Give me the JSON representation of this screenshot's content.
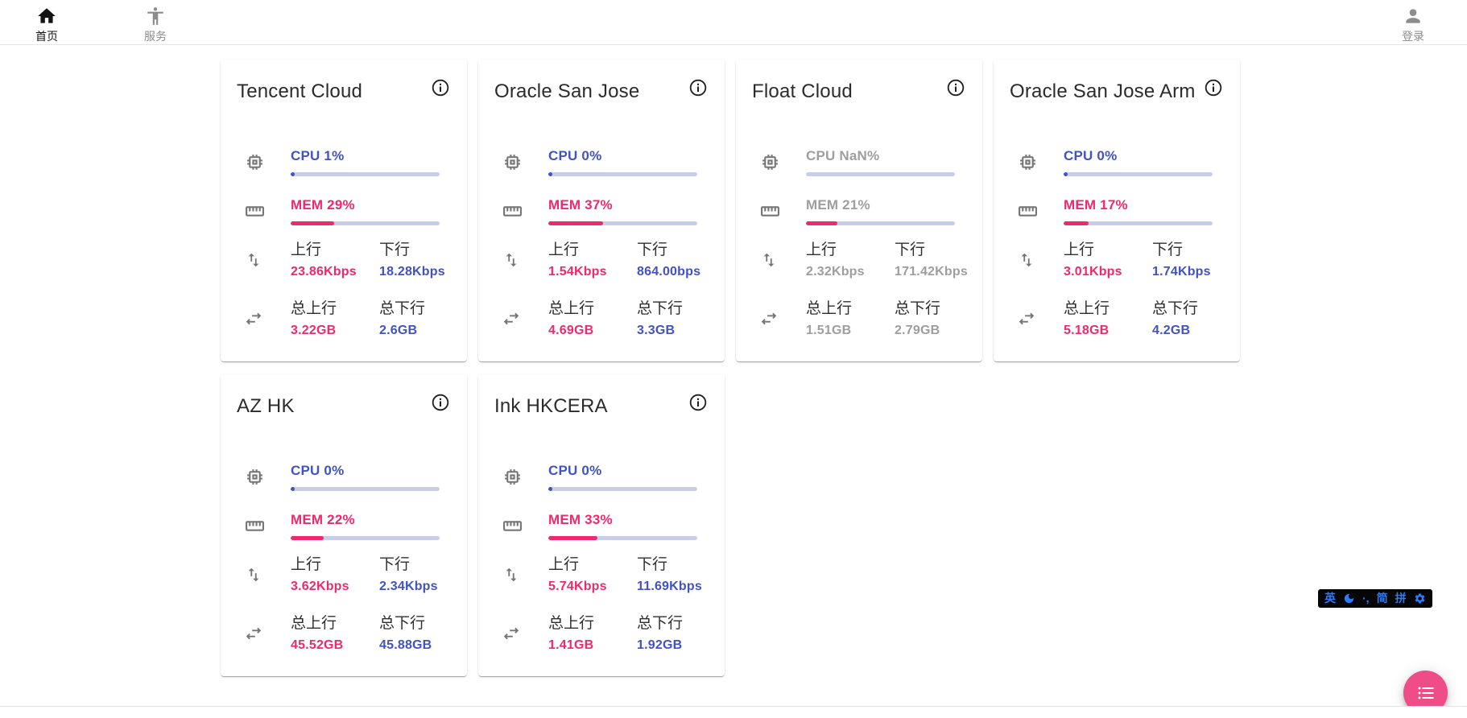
{
  "nav": {
    "home": {
      "label": "首页"
    },
    "service": {
      "label": "服务"
    },
    "login": {
      "label": "登录"
    }
  },
  "labels": {
    "upload": "上行",
    "download": "下行",
    "total_upload": "总上行",
    "total_download": "总下行"
  },
  "servers": [
    {
      "name": "Tencent Cloud",
      "cpu_label": "CPU 1%",
      "cpu_pct": 1,
      "mem_label": "MEM 29%",
      "mem_pct": 29,
      "upload": "23.86Kbps",
      "download": "18.28Kbps",
      "total_upload": "3.22GB",
      "total_download": "2.6GB",
      "offline": false
    },
    {
      "name": "Oracle San Jose",
      "cpu_label": "CPU 0%",
      "cpu_pct": 0,
      "mem_label": "MEM 37%",
      "mem_pct": 37,
      "upload": "1.54Kbps",
      "download": "864.00bps",
      "total_upload": "4.69GB",
      "total_download": "3.3GB",
      "offline": false
    },
    {
      "name": "Float Cloud",
      "cpu_label": "CPU NaN%",
      "cpu_pct": null,
      "mem_label": "MEM 21%",
      "mem_pct": 21,
      "upload": "2.32Kbps",
      "download": "171.42Kbps",
      "total_upload": "1.51GB",
      "total_download": "2.79GB",
      "offline": true
    },
    {
      "name": "Oracle San Jose Arm",
      "cpu_label": "CPU 0%",
      "cpu_pct": 0,
      "mem_label": "MEM 17%",
      "mem_pct": 17,
      "upload": "3.01Kbps",
      "download": "1.74Kbps",
      "total_upload": "5.18GB",
      "total_download": "4.2GB",
      "offline": false
    },
    {
      "name": "AZ HK",
      "cpu_label": "CPU 0%",
      "cpu_pct": 0,
      "mem_label": "MEM 22%",
      "mem_pct": 22,
      "upload": "3.62Kbps",
      "download": "2.34Kbps",
      "total_upload": "45.52GB",
      "total_download": "45.88GB",
      "offline": false
    },
    {
      "name": "Ink HKCERA",
      "cpu_label": "CPU 0%",
      "cpu_pct": 0,
      "mem_label": "MEM 33%",
      "mem_pct": 33,
      "upload": "5.74Kbps",
      "download": "11.69Kbps",
      "total_upload": "1.41GB",
      "total_download": "1.92GB",
      "offline": false
    }
  ],
  "ime_bar": {
    "items": [
      {
        "type": "text",
        "label": "英",
        "name": "ime-english-mode"
      },
      {
        "type": "icon",
        "name": "moon-icon"
      },
      {
        "type": "text",
        "label": "·,",
        "name": "ime-punctuation-mode"
      },
      {
        "type": "text",
        "label": "简",
        "name": "ime-simplified-mode"
      },
      {
        "type": "text",
        "label": "拼",
        "name": "ime-pinyin-mode"
      },
      {
        "type": "icon",
        "name": "gear-icon"
      }
    ]
  },
  "colors": {
    "accent_blue": "#4152c5",
    "accent_pink": "#f0296c",
    "bar_track": "#c9cdeb",
    "offline_gray": "#9e9e9e",
    "fab_pink": "#ee4d87",
    "ime_blue": "#2e7bf7"
  }
}
